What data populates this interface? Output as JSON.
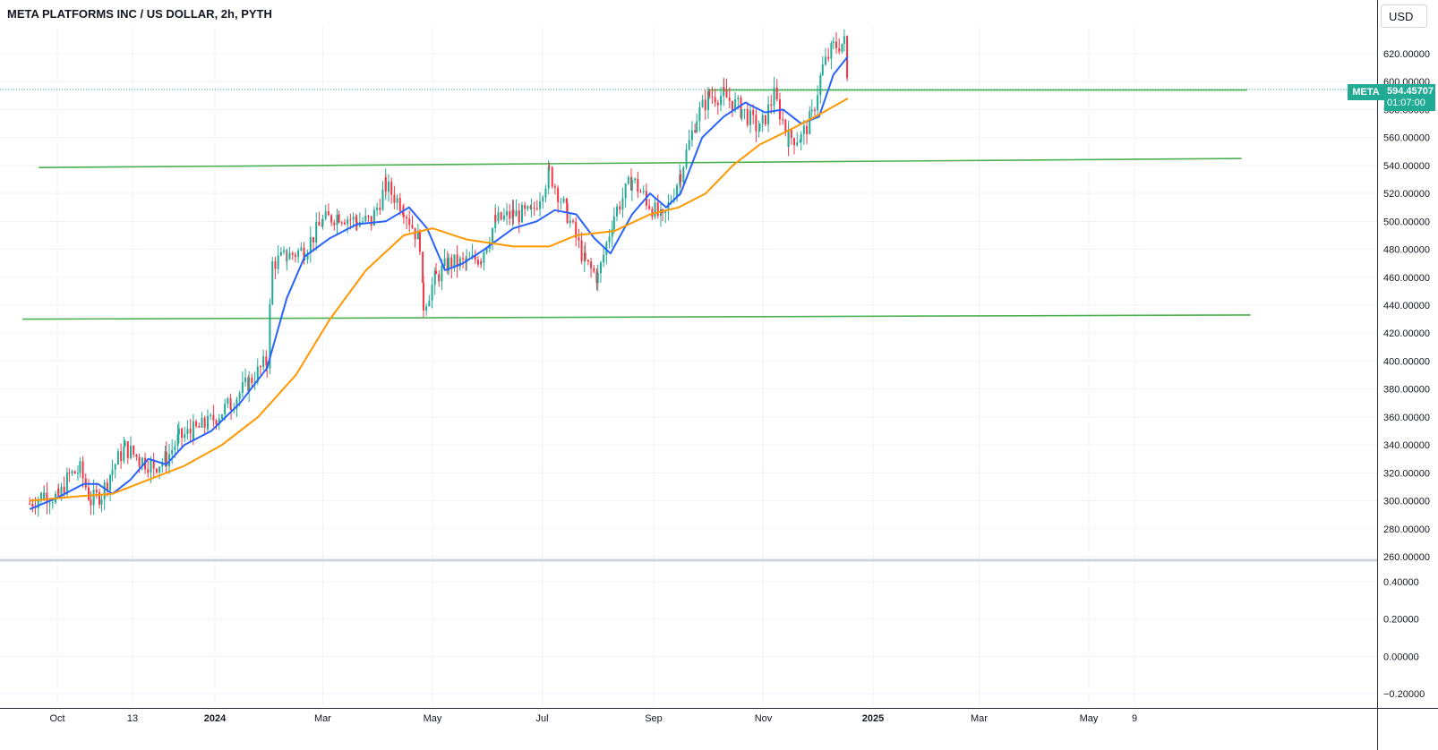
{
  "header": {
    "title": "META PLATFORMS INC / US DOLLAR, 2h, PYTH"
  },
  "toolbar": {
    "currency_label": "USD"
  },
  "last_price": {
    "ticker": "META",
    "price": "594.45707",
    "countdown": "01:07:00",
    "value": 594.45707
  },
  "colors": {
    "up": "#22ab94",
    "down": "#f23645",
    "ma_fast": "#2962ff",
    "ma_slow": "#ff9800",
    "trend": "#4caf50",
    "grid": "#f0f3fa",
    "axis_text": "#131722"
  },
  "chart_data": {
    "type": "line",
    "title": "META PLATFORMS INC / US DOLLAR, 2h, PYTH",
    "xlabel": "",
    "ylabel": "",
    "ylim": [
      255,
      640
    ],
    "grid": true,
    "x_tick_labels": [
      "Oct",
      "13",
      "2024",
      "Mar",
      "May",
      "Jul",
      "Sep",
      "Nov",
      "2025",
      "Mar",
      "May",
      "9"
    ],
    "y_tick_labels": [
      "620.00000",
      "600.00000",
      "580.00000",
      "560.00000",
      "540.00000",
      "520.00000",
      "500.00000",
      "480.00000",
      "460.00000",
      "440.00000",
      "420.00000",
      "400.00000",
      "380.00000",
      "360.00000",
      "340.00000",
      "320.00000",
      "300.00000",
      "280.00000",
      "260.00000"
    ],
    "lower_pane": {
      "y_tick_labels": [
        "0.40000",
        "0.20000",
        "0.00000",
        "−0.20000"
      ],
      "ylim": [
        -0.26,
        0.5
      ]
    },
    "price_path": [
      [
        "2023-09-20",
        298
      ],
      [
        "2023-09-28",
        305
      ],
      [
        "2023-10-06",
        302
      ],
      [
        "2023-10-12",
        318
      ],
      [
        "2023-10-18",
        322
      ],
      [
        "2023-10-24",
        300
      ],
      [
        "2023-10-30",
        305
      ],
      [
        "2023-11-05",
        323
      ],
      [
        "2023-11-12",
        338
      ],
      [
        "2023-11-20",
        330
      ],
      [
        "2023-11-28",
        325
      ],
      [
        "2023-12-05",
        330
      ],
      [
        "2023-12-12",
        345
      ],
      [
        "2023-12-20",
        350
      ],
      [
        "2023-12-28",
        355
      ],
      [
        "2024-01-10",
        370
      ],
      [
        "2024-01-20",
        385
      ],
      [
        "2024-01-30",
        400
      ],
      [
        "2024-02-02",
        470
      ],
      [
        "2024-02-10",
        475
      ],
      [
        "2024-02-20",
        480
      ],
      [
        "2024-03-01",
        500
      ],
      [
        "2024-03-10",
        505
      ],
      [
        "2024-03-20",
        500
      ],
      [
        "2024-03-28",
        500
      ],
      [
        "2024-04-05",
        525
      ],
      [
        "2024-04-15",
        510
      ],
      [
        "2024-04-24",
        485
      ],
      [
        "2024-04-26",
        440
      ],
      [
        "2024-05-03",
        460
      ],
      [
        "2024-05-10",
        470
      ],
      [
        "2024-05-20",
        470
      ],
      [
        "2024-05-28",
        475
      ],
      [
        "2024-06-05",
        500
      ],
      [
        "2024-06-15",
        505
      ],
      [
        "2024-06-25",
        505
      ],
      [
        "2024-07-05",
        535
      ],
      [
        "2024-07-15",
        505
      ],
      [
        "2024-07-25",
        470
      ],
      [
        "2024-08-01",
        460
      ],
      [
        "2024-08-10",
        505
      ],
      [
        "2024-08-20",
        530
      ],
      [
        "2024-08-28",
        515
      ],
      [
        "2024-09-06",
        500
      ],
      [
        "2024-09-16",
        535
      ],
      [
        "2024-09-25",
        575
      ],
      [
        "2024-10-02",
        590
      ],
      [
        "2024-10-10",
        590
      ],
      [
        "2024-10-20",
        580
      ],
      [
        "2024-10-30",
        565
      ],
      [
        "2024-11-07",
        590
      ],
      [
        "2024-11-15",
        560
      ],
      [
        "2024-11-22",
        560
      ],
      [
        "2024-11-28",
        575
      ],
      [
        "2024-12-04",
        610
      ],
      [
        "2024-12-10",
        625
      ],
      [
        "2024-12-16",
        628
      ],
      [
        "2024-12-18",
        594.46
      ]
    ],
    "series": [
      {
        "color": "#2962ff",
        "points": [
          [
            "2023-09-20",
            294
          ],
          [
            "2023-10-05",
            302
          ],
          [
            "2023-10-20",
            312
          ],
          [
            "2023-10-28",
            312
          ],
          [
            "2023-11-05",
            305
          ],
          [
            "2023-11-15",
            315
          ],
          [
            "2023-11-25",
            330
          ],
          [
            "2023-12-05",
            326
          ],
          [
            "2023-12-15",
            340
          ],
          [
            "2023-12-30",
            350
          ],
          [
            "2024-01-15",
            370
          ],
          [
            "2024-01-30",
            395
          ],
          [
            "2024-02-10",
            445
          ],
          [
            "2024-02-20",
            475
          ],
          [
            "2024-03-05",
            488
          ],
          [
            "2024-03-20",
            498
          ],
          [
            "2024-04-05",
            500
          ],
          [
            "2024-04-18",
            510
          ],
          [
            "2024-04-28",
            495
          ],
          [
            "2024-05-08",
            465
          ],
          [
            "2024-05-18",
            470
          ],
          [
            "2024-05-30",
            480
          ],
          [
            "2024-06-15",
            495
          ],
          [
            "2024-06-28",
            500
          ],
          [
            "2024-07-08",
            508
          ],
          [
            "2024-07-20",
            505
          ],
          [
            "2024-07-30",
            488
          ],
          [
            "2024-08-08",
            477
          ],
          [
            "2024-08-20",
            505
          ],
          [
            "2024-08-30",
            520
          ],
          [
            "2024-09-08",
            510
          ],
          [
            "2024-09-16",
            520
          ],
          [
            "2024-09-28",
            560
          ],
          [
            "2024-10-10",
            575
          ],
          [
            "2024-10-22",
            585
          ],
          [
            "2024-11-02",
            578
          ],
          [
            "2024-11-12",
            580
          ],
          [
            "2024-11-22",
            570
          ],
          [
            "2024-12-02",
            575
          ],
          [
            "2024-12-10",
            605
          ],
          [
            "2024-12-18",
            618
          ]
        ]
      },
      {
        "color": "#ff9800",
        "points": [
          [
            "2023-09-20",
            300
          ],
          [
            "2023-10-15",
            303
          ],
          [
            "2023-11-05",
            305
          ],
          [
            "2023-11-25",
            315
          ],
          [
            "2023-12-15",
            325
          ],
          [
            "2024-01-05",
            340
          ],
          [
            "2024-01-25",
            360
          ],
          [
            "2024-02-15",
            390
          ],
          [
            "2024-03-05",
            430
          ],
          [
            "2024-03-25",
            465
          ],
          [
            "2024-04-15",
            490
          ],
          [
            "2024-05-01",
            495
          ],
          [
            "2024-05-20",
            487
          ],
          [
            "2024-06-15",
            482
          ],
          [
            "2024-07-05",
            482
          ],
          [
            "2024-07-20",
            490
          ],
          [
            "2024-08-10",
            493
          ],
          [
            "2024-08-30",
            505
          ],
          [
            "2024-09-15",
            510
          ],
          [
            "2024-09-30",
            520
          ],
          [
            "2024-10-15",
            540
          ],
          [
            "2024-10-30",
            555
          ],
          [
            "2024-11-15",
            565
          ],
          [
            "2024-11-30",
            575
          ],
          [
            "2024-12-18",
            588
          ]
        ]
      }
    ],
    "horizontal_levels": [
      {
        "from": [
          "2023-09-25",
          538.5
        ],
        "to": [
          "2025-07-25",
          545
        ]
      },
      {
        "from": [
          "2023-09-16",
          430
        ],
        "to": [
          "2025-07-30",
          433
        ]
      },
      {
        "from": [
          "2024-10-01",
          594
        ],
        "to": [
          "2025-07-28",
          594
        ]
      }
    ]
  }
}
